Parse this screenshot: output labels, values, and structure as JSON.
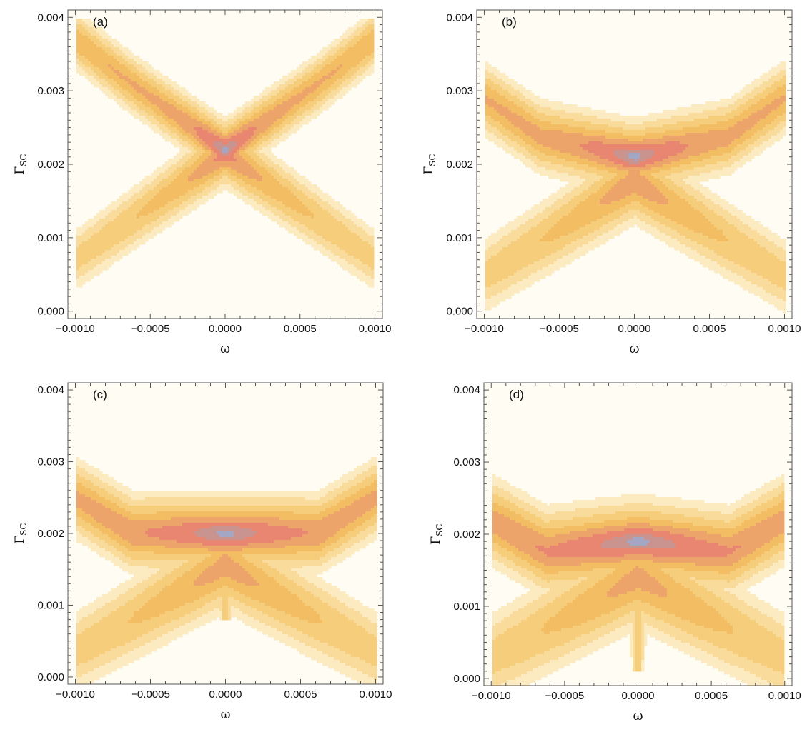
{
  "chart_data": [
    {
      "type": "contour",
      "panel_label": "(a)",
      "xlabel": "ω",
      "ylabel": "Γ",
      "ylabel_sub": "SC",
      "xlim": [
        -0.00105,
        0.00105
      ],
      "ylim": [
        -0.0001,
        0.0041
      ],
      "xticks": [
        -0.001,
        -0.0005,
        0.0,
        0.0005,
        0.001
      ],
      "xtick_labels": [
        "−0.0010",
        "−0.0005",
        "0.0000",
        "0.0005",
        "0.0010"
      ],
      "yticks": [
        0.0,
        0.001,
        0.002,
        0.003,
        0.004
      ],
      "ytick_labels": [
        "0.000",
        "0.001",
        "0.002",
        "0.003",
        "0.004"
      ],
      "shape": {
        "bowl_k": 1.6,
        "band": 0.00028,
        "center_y": 0.0022,
        "wing_drop": 0.0001,
        "tail_depth": 0.0,
        "sharp": 0.045
      },
      "colormap": [
        "#fefcf3",
        "#fcebc0",
        "#f9dc9b",
        "#f6cd7a",
        "#f2bd63",
        "#eda46a",
        "#e98672",
        "#c99390",
        "#a4a7c4"
      ]
    },
    {
      "type": "contour",
      "panel_label": "(b)",
      "xlabel": "ω",
      "ylabel": "Γ",
      "ylabel_sub": "SC",
      "xlim": [
        -0.00105,
        0.00105
      ],
      "ylim": [
        -0.0001,
        0.0041
      ],
      "xticks": [
        -0.001,
        -0.0005,
        0.0,
        0.0005,
        0.001
      ],
      "xtick_labels": [
        "−0.0010",
        "−0.0005",
        "0.0000",
        "0.0005",
        "0.0010"
      ],
      "yticks": [
        0.0,
        0.001,
        0.002,
        0.003,
        0.004
      ],
      "ytick_labels": [
        "0.000",
        "0.001",
        "0.002",
        "0.003",
        "0.004"
      ],
      "shape": {
        "bowl_k": 1.4,
        "band": 0.00034,
        "center_y": 0.0021,
        "wing_drop": 0.0006,
        "tail_depth": 0.0003,
        "sharp": 0.07
      },
      "colormap": [
        "#fefcf3",
        "#fcebc0",
        "#f9dc9b",
        "#f6cd7a",
        "#f2bd63",
        "#eda46a",
        "#e98672",
        "#c99390",
        "#a4a7c4"
      ]
    },
    {
      "type": "contour",
      "panel_label": "(c)",
      "xlabel": "ω",
      "ylabel": "Γ",
      "ylabel_sub": "SC",
      "xlim": [
        -0.00105,
        0.00105
      ],
      "ylim": [
        -0.0001,
        0.0041
      ],
      "xticks": [
        -0.001,
        -0.0005,
        0.0,
        0.0005,
        0.001
      ],
      "xtick_labels": [
        "−0.0010",
        "−0.0005",
        "0.0000",
        "0.0005",
        "0.0010"
      ],
      "yticks": [
        0.0,
        0.001,
        0.002,
        0.003,
        0.004
      ],
      "ytick_labels": [
        "0.000",
        "0.001",
        "0.002",
        "0.003",
        "0.004"
      ],
      "shape": {
        "bowl_k": 1.3,
        "band": 0.00038,
        "center_y": 0.002,
        "wing_drop": 0.0008,
        "tail_depth": 0.0008,
        "sharp": 0.1
      },
      "colormap": [
        "#fefcf3",
        "#fcebc0",
        "#f9dc9b",
        "#f6cd7a",
        "#f2bd63",
        "#eda46a",
        "#e98672",
        "#c99390",
        "#a4a7c4"
      ]
    },
    {
      "type": "contour",
      "panel_label": "(d)",
      "xlabel": "ω",
      "ylabel": "Γ",
      "ylabel_sub": "SC",
      "xlim": [
        -0.00105,
        0.00105
      ],
      "ylim": [
        -0.0001,
        0.0041
      ],
      "xticks": [
        -0.001,
        -0.0005,
        0.0,
        0.0005,
        0.001
      ],
      "xtick_labels": [
        "−0.0010",
        "−0.0005",
        "0.0000",
        "0.0005",
        "0.0010"
      ],
      "yticks": [
        0.0,
        0.001,
        0.002,
        0.003,
        0.004
      ],
      "ytick_labels": [
        "0.000",
        "0.001",
        "0.002",
        "0.003",
        "0.004"
      ],
      "shape": {
        "bowl_k": 1.2,
        "band": 0.00042,
        "center_y": 0.0019,
        "wing_drop": 0.0009,
        "tail_depth": 0.0014,
        "sharp": 0.13
      },
      "colormap": [
        "#fefcf3",
        "#fcebc0",
        "#f9dc9b",
        "#f6cd7a",
        "#f2bd63",
        "#eda46a",
        "#e98672",
        "#c99390",
        "#a4a7c4"
      ]
    }
  ]
}
